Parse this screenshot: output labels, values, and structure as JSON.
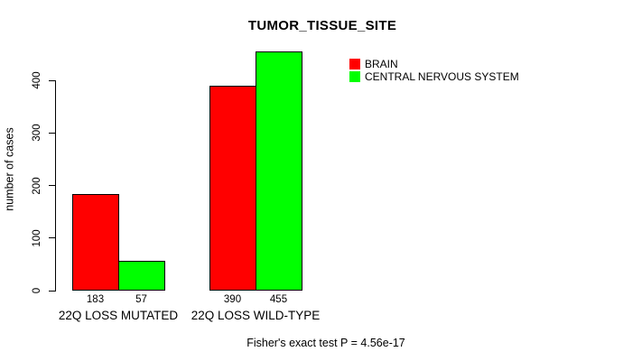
{
  "chart_data": {
    "type": "bar",
    "title": "TUMOR_TISSUE_SITE",
    "ylabel": "number of cases",
    "xlabel": "",
    "categories": [
      "22Q LOSS MUTATED",
      "22Q LOSS WILD-TYPE"
    ],
    "series": [
      {
        "name": "BRAIN",
        "color": "#FF0000",
        "values": [
          183,
          390
        ]
      },
      {
        "name": "CENTRAL NERVOUS SYSTEM",
        "color": "#00FF00",
        "values": [
          57,
          455
        ]
      }
    ],
    "yticks": [
      0,
      100,
      200,
      300,
      400
    ],
    "ylim": [
      0,
      455
    ],
    "bar_value_labels": [
      "183",
      "57",
      "390",
      "455"
    ],
    "legend_position": "top-right",
    "grid": false,
    "annotation": "Fisher's exact test P = 4.56e-17"
  }
}
